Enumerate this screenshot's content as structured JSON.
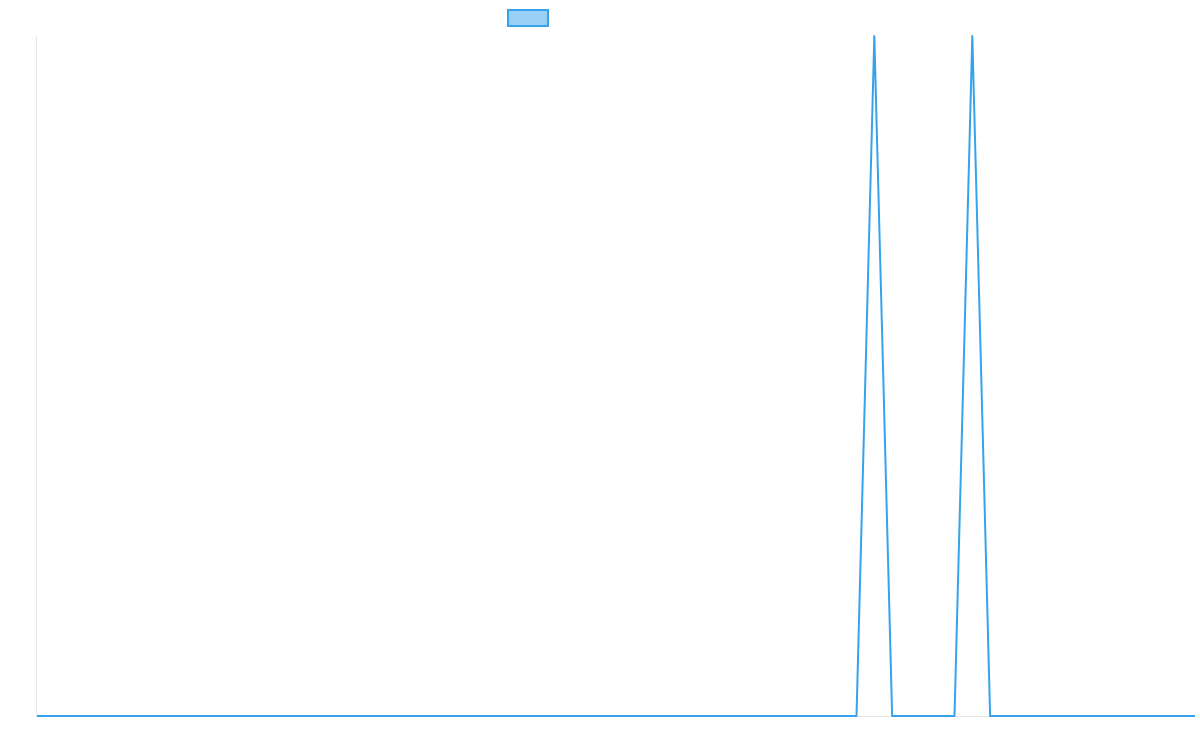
{
  "colors": {
    "line": "#36a2eb",
    "legend_fill": "#9ad0f5",
    "axis": "#e5e5e5",
    "background": "#ffffff"
  },
  "chart_data": {
    "type": "line",
    "title": "",
    "xlabel": "",
    "ylabel": "",
    "grid": false,
    "legend_placement": "top",
    "x": [
      0,
      50,
      100,
      150,
      200,
      250,
      300,
      350,
      400,
      450,
      500,
      550,
      600,
      650,
      700,
      750,
      800,
      850,
      860,
      870,
      880,
      890,
      900,
      910,
      920,
      930,
      940,
      950,
      960,
      970,
      980,
      990,
      1000,
      1010,
      1020,
      1030,
      1040,
      1050,
      1060,
      1070,
      1080,
      1090,
      1100,
      1150,
      1200,
      1250,
      1300
    ],
    "series": [
      {
        "name": "",
        "values": [
          0,
          0,
          0,
          0,
          0,
          0,
          0,
          0,
          0,
          0,
          0,
          0,
          0,
          0,
          0,
          0,
          0,
          0,
          0,
          0,
          0,
          0,
          0,
          0,
          0,
          0.5,
          1,
          0.5,
          0,
          0,
          0,
          0,
          0,
          0,
          0,
          0,
          0.5,
          1,
          0.5,
          0,
          0,
          0,
          0,
          0,
          0,
          0,
          0
        ]
      }
    ],
    "xlim": [
      0,
      1300
    ],
    "ylim": [
      0,
      1
    ]
  }
}
